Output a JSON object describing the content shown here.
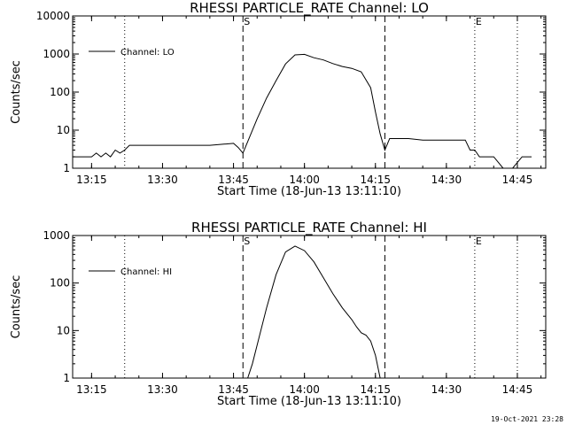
{
  "footer": {
    "timestamp": "19-Oct-2021 23:28"
  },
  "chart_data": [
    {
      "type": "line",
      "title": "RHESSI PARTICLE_RATE Channel: LO",
      "xlabel": "Start Time (18-Jun-13 13:11:10)",
      "ylabel": "Counts/sec",
      "yscale": "log",
      "ylim": [
        1,
        10000
      ],
      "xlim": [
        "13:11",
        "14:51"
      ],
      "xticks": [
        "13:15",
        "13:30",
        "13:45",
        "14:00",
        "14:15",
        "14:30",
        "14:45"
      ],
      "yticks": [
        "1",
        "10",
        "100",
        "1000",
        "10000"
      ],
      "legend": {
        "entries": [
          "Channel: LO"
        ],
        "position": "top-left"
      },
      "markers": [
        {
          "label": "S",
          "time": "13:47",
          "style": "dashed"
        },
        {
          "label": "E",
          "time": "14:36",
          "style": "dotted"
        }
      ],
      "vlines": [
        {
          "time": "13:22",
          "style": "dotted"
        },
        {
          "time": "13:47",
          "style": "dashed"
        },
        {
          "time": "14:17",
          "style": "dashed"
        },
        {
          "time": "14:36",
          "style": "dotted"
        },
        {
          "time": "14:45",
          "style": "dotted"
        }
      ],
      "series": [
        {
          "x": [
            "13:11",
            "13:15",
            "13:16",
            "13:17",
            "13:18",
            "13:19",
            "13:20",
            "13:21",
            "13:22",
            "13:23",
            "13:25",
            "13:30",
            "13:35",
            "13:40",
            "13:43",
            "13:45",
            "13:46",
            "13:47",
            "13:48",
            "13:50",
            "13:52",
            "13:54",
            "13:56",
            "13:58",
            "14:00",
            "14:02",
            "14:04",
            "14:06",
            "14:08",
            "14:10",
            "14:12",
            "14:14",
            "14:15",
            "14:16",
            "14:17",
            "14:18",
            "14:20",
            "14:22",
            "14:25",
            "14:30",
            "14:34",
            "14:35",
            "14:36",
            "14:37",
            "14:38",
            "14:40",
            "14:42",
            "14:44",
            "14:46",
            "14:48"
          ],
          "y": [
            2,
            2,
            2.5,
            2,
            2.5,
            2,
            3,
            2.5,
            3,
            4,
            4,
            4,
            4,
            4,
            4.3,
            4.5,
            3.5,
            2.5,
            5,
            20,
            70,
            200,
            550,
            950,
            980,
            800,
            700,
            560,
            470,
            420,
            340,
            130,
            30,
            8,
            3,
            6,
            6,
            6,
            5.5,
            5.5,
            5.5,
            3,
            3,
            2,
            2,
            2,
            1,
            1,
            2,
            2
          ]
        }
      ]
    },
    {
      "type": "line",
      "title": "RHESSI PARTICLE_RATE Channel: HI",
      "xlabel": "Start Time (18-Jun-13 13:11:10)",
      "ylabel": "Counts/sec",
      "yscale": "log",
      "ylim": [
        1,
        1000
      ],
      "xlim": [
        "13:11",
        "14:51"
      ],
      "xticks": [
        "13:15",
        "13:30",
        "13:45",
        "14:00",
        "14:15",
        "14:30",
        "14:45"
      ],
      "yticks": [
        "1",
        "10",
        "100",
        "1000"
      ],
      "legend": {
        "entries": [
          "Channel: HI"
        ],
        "position": "top-left"
      },
      "markers": [
        {
          "label": "S",
          "time": "13:47",
          "style": "dashed"
        },
        {
          "label": "E",
          "time": "14:36",
          "style": "dotted"
        }
      ],
      "vlines": [
        {
          "time": "13:22",
          "style": "dotted"
        },
        {
          "time": "13:47",
          "style": "dashed"
        },
        {
          "time": "14:17",
          "style": "dashed"
        },
        {
          "time": "14:36",
          "style": "dotted"
        },
        {
          "time": "14:45",
          "style": "dotted"
        }
      ],
      "series": [
        {
          "x": [
            "13:48",
            "13:49",
            "13:50",
            "13:52",
            "13:54",
            "13:56",
            "13:58",
            "14:00",
            "14:02",
            "14:04",
            "14:06",
            "14:08",
            "14:10",
            "14:11",
            "14:12",
            "14:13",
            "14:14",
            "14:15",
            "14:16"
          ],
          "y": [
            1,
            2,
            5,
            30,
            150,
            450,
            600,
            480,
            280,
            130,
            60,
            30,
            17,
            12,
            9,
            8,
            6,
            3,
            1
          ]
        }
      ]
    }
  ]
}
